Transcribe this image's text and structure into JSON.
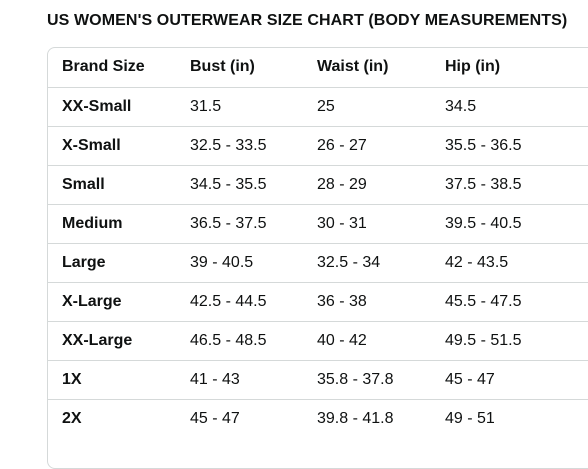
{
  "title": "US WOMEN'S OUTERWEAR SIZE CHART (BODY MEASUREMENTS)",
  "table": {
    "headers": [
      "Brand Size",
      "Bust (in)",
      "Waist (in)",
      "Hip (in)"
    ],
    "rows": [
      [
        "XX-Small",
        "31.5",
        "25",
        "34.5"
      ],
      [
        "X-Small",
        "32.5 - 33.5",
        "26 - 27",
        "35.5 - 36.5"
      ],
      [
        "Small",
        "34.5 - 35.5",
        "28 - 29",
        "37.5 - 38.5"
      ],
      [
        "Medium",
        "36.5 - 37.5",
        "30 - 31",
        "39.5 - 40.5"
      ],
      [
        "Large",
        "39 - 40.5",
        "32.5 - 34",
        "42 - 43.5"
      ],
      [
        "X-Large",
        "42.5 - 44.5",
        "36 - 38",
        "45.5 - 47.5"
      ],
      [
        "XX-Large",
        "46.5 - 48.5",
        "40 - 42",
        "49.5 - 51.5"
      ],
      [
        "1X",
        "41 - 43",
        "35.8 - 37.8",
        "45 - 47"
      ],
      [
        "2X",
        "45 - 47",
        "39.8 - 41.8",
        "49 - 51"
      ]
    ]
  },
  "colors": {
    "text": "#0f1111",
    "border": "#d5d9d9",
    "background": "#ffffff"
  }
}
